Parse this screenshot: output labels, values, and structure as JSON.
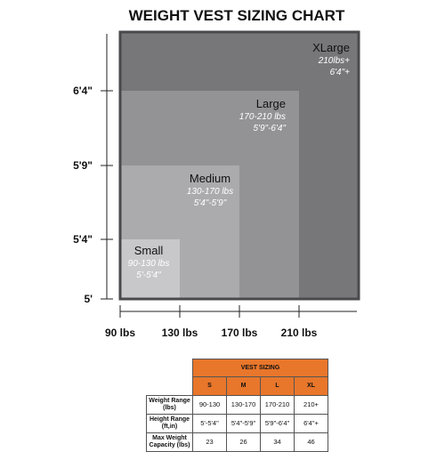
{
  "chart_data": {
    "type": "area",
    "title": "WEIGHT VEST SIZING CHART",
    "x_ticks": [
      "90 lbs",
      "130 lbs",
      "170 lbs",
      "210 lbs"
    ],
    "y_ticks": [
      "5'",
      "5'4\"",
      "5'9\"",
      "6'4\""
    ],
    "sizes": [
      {
        "name": "XLarge",
        "weight": "210lbs+",
        "height": "6'4\"+",
        "weight_range": [
          90,
          250
        ],
        "height_range": [
          60,
          82
        ],
        "color": "#777779",
        "name_color": "#111111",
        "sub_color": "#ffffff"
      },
      {
        "name": "Large",
        "weight": "170-210 lbs",
        "height": "5'9\"-6'4\"",
        "weight_range": [
          90,
          210
        ],
        "height_range": [
          60,
          76
        ],
        "color": "#939395",
        "name_color": "#111111",
        "sub_color": "#ffffff"
      },
      {
        "name": "Medium",
        "weight": "130-170 lbs",
        "height": "5'4\"-5'9\"",
        "weight_range": [
          90,
          170
        ],
        "height_range": [
          60,
          69
        ],
        "color": "#ababad",
        "name_color": "#111111",
        "sub_color": "#ffffff"
      },
      {
        "name": "Small",
        "weight": "90-130 lbs",
        "height": "5'-5'4\"",
        "weight_range": [
          90,
          130
        ],
        "height_range": [
          60,
          64
        ],
        "color": "#c8c8ca",
        "name_color": "#111111",
        "sub_color": "#ffffff"
      }
    ]
  },
  "table": {
    "title": "VEST SIZING",
    "columns": [
      "S",
      "M",
      "L",
      "XL"
    ],
    "rows": [
      {
        "label": "Weight Range (lbs)",
        "values": [
          "90-130",
          "130-170",
          "170-210",
          "210+"
        ]
      },
      {
        "label": "Height Range (ft,in)",
        "values": [
          "5'-5'4\"",
          "5'4\"-5'9\"",
          "5'9\"-6'4\"",
          "6'4\"+"
        ]
      },
      {
        "label": "Max Weight Capacity (lbs)",
        "values": [
          "23",
          "26",
          "34",
          "46"
        ]
      }
    ]
  },
  "colors": {
    "header_orange": "#e8762b",
    "outer_border": "#4a4a4c"
  }
}
